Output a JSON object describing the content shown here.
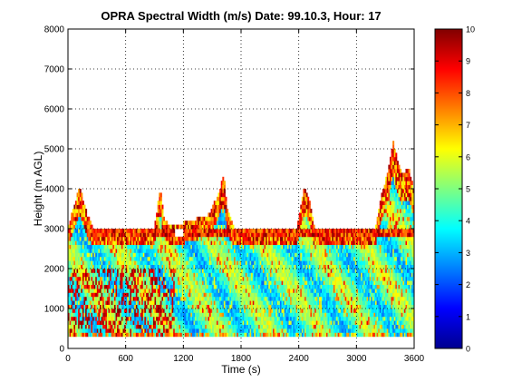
{
  "chart_data": {
    "type": "heatmap",
    "title": "OPRA Spectral Width (m/s)  Date: 99.10.3, Hour: 17",
    "xlabel": "Time (s)",
    "ylabel": "Height (m AGL)",
    "xlim": [
      0,
      3600
    ],
    "ylim": [
      0,
      8000
    ],
    "xticks": [
      "0",
      "600",
      "1200",
      "1800",
      "2400",
      "3000",
      "3600"
    ],
    "yticks": [
      "0",
      "1000",
      "2000",
      "3000",
      "4000",
      "5000",
      "6000",
      "7000",
      "8000"
    ],
    "grid": true,
    "colorbar": {
      "range": [
        0,
        10
      ],
      "ticks": [
        "0",
        "1",
        "2",
        "3",
        "4",
        "5",
        "6",
        "7",
        "8",
        "9",
        "10"
      ],
      "colormap": "jet"
    },
    "height_gate_min": 300,
    "data_top_profile": [
      [
        0,
        3000
      ],
      [
        60,
        3500
      ],
      [
        120,
        4000
      ],
      [
        200,
        3300
      ],
      [
        260,
        3000
      ],
      [
        900,
        3000
      ],
      [
        960,
        4000
      ],
      [
        1000,
        3200
      ],
      [
        1080,
        3000
      ],
      [
        1460,
        3300
      ],
      [
        1560,
        3800
      ],
      [
        1620,
        4300
      ],
      [
        1660,
        3400
      ],
      [
        1720,
        3000
      ],
      [
        2000,
        3000
      ],
      [
        2380,
        3000
      ],
      [
        2460,
        4000
      ],
      [
        2520,
        3600
      ],
      [
        2560,
        3000
      ],
      [
        3200,
        3000
      ],
      [
        3260,
        3800
      ],
      [
        3330,
        4400
      ],
      [
        3380,
        5200
      ],
      [
        3430,
        4600
      ],
      [
        3480,
        4300
      ],
      [
        3540,
        4500
      ],
      [
        3600,
        3900
      ]
    ],
    "clutter_layer": [
      2800,
      3000
    ]
  }
}
